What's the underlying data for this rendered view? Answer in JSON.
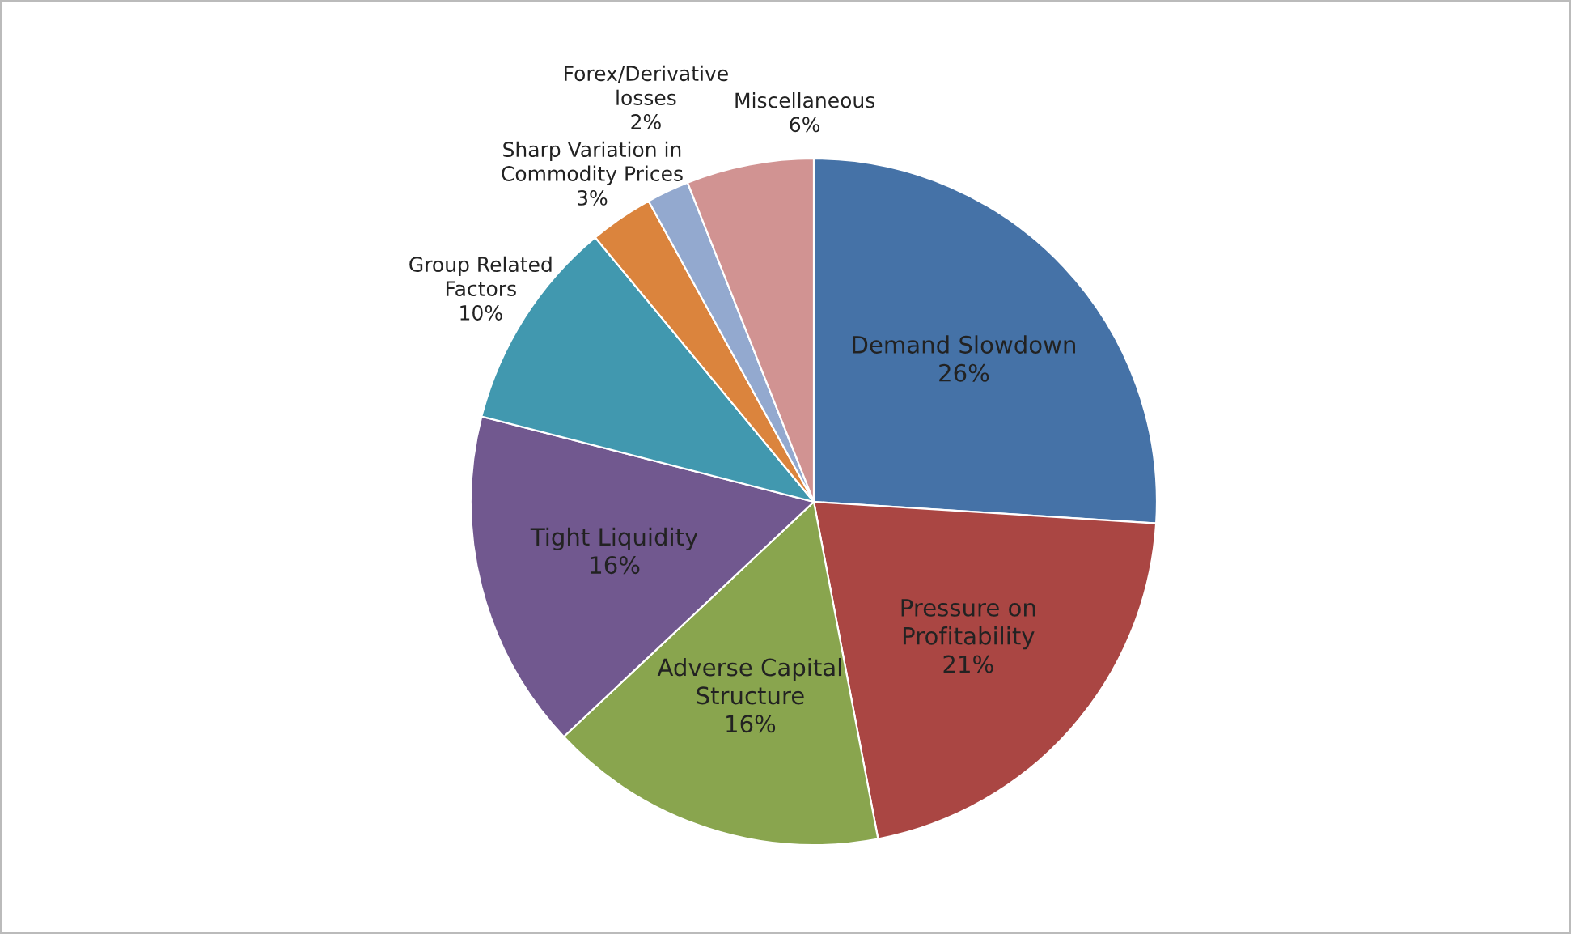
{
  "chart_data": {
    "type": "pie",
    "categories": [
      "Demand Slowdown",
      "Pressure on\nProfitability",
      "Adverse Capital\nStructure",
      "Tight Liquidity",
      "Group Related\nFactors",
      "Sharp Variation in\nCommodity Prices",
      "Forex/Derivative\nlosses",
      "Miscellaneous"
    ],
    "values": [
      26,
      21,
      16,
      16,
      10,
      3,
      2,
      6
    ],
    "value_labels": [
      "26%",
      "21%",
      "16%",
      "16%",
      "10%",
      "3%",
      "2%",
      "6%"
    ],
    "colors": [
      "#4572a7",
      "#aa4643",
      "#89a54e",
      "#71588f",
      "#4198af",
      "#db843d",
      "#93a9cf",
      "#d19392"
    ],
    "legend": false
  }
}
